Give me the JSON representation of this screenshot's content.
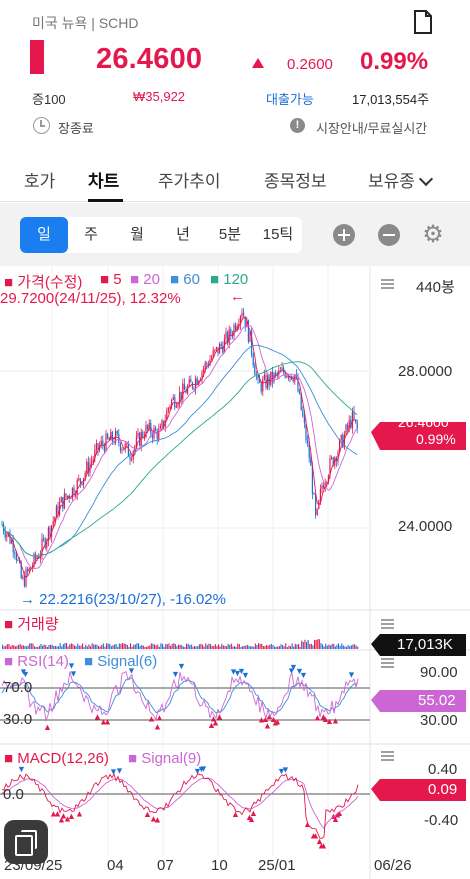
{
  "header": {
    "market_symbol": "미국 뉴욕 | SCHD",
    "price": "26.4600",
    "change": "0.2600",
    "change_pct": "0.99%",
    "margin": "증100",
    "krw_price": "₩35,922",
    "loan": "대출가능",
    "volume": "17,013,554주",
    "status": "장종료",
    "market_info": "시장안내/무료실시간",
    "accent_color": "#e5184e"
  },
  "tabs": [
    {
      "label": "호가",
      "active": false
    },
    {
      "label": "차트",
      "active": true
    },
    {
      "label": "주가추이",
      "active": false
    },
    {
      "label": "종목정보",
      "active": false
    },
    {
      "label": "보유종",
      "active": false
    }
  ],
  "periods": [
    {
      "label": "일",
      "active": true
    },
    {
      "label": "주",
      "active": false
    },
    {
      "label": "월",
      "active": false
    },
    {
      "label": "년",
      "active": false
    },
    {
      "label": "5분",
      "active": false
    },
    {
      "label": "15틱",
      "active": false
    }
  ],
  "chart": {
    "price_legend": "■ 가격(수정)",
    "ma5": "■ 5",
    "ma20": "■ 20",
    "ma60": "■ 60",
    "ma120": "■ 120",
    "candles": "440봉",
    "high_note": "29.7200(24/11/25), 12.32%",
    "low_note": "22.2216(23/10/27), -16.02%",
    "y_28": "28.0000",
    "y_24": "24.0000",
    "current_price": "26.4600",
    "current_pct": "0.99%",
    "volume_title": "■ 거래량",
    "volume_value": "17,013K",
    "rsi_title": "■ RSI(14)",
    "rsi_signal": "■ Signal(6)",
    "rsi_90": "90.00",
    "rsi_30": "30.00",
    "rsi_70": "70.0",
    "rsi_30l": "30.0",
    "rsi_value": "55.02",
    "macd_title": "■ MACD(12,26)",
    "macd_signal": "■ Signal(9)",
    "macd_040": "0.40",
    "macd_0": "0.0",
    "macd_neg040": "-0.40",
    "macd_value": "0.09",
    "x_labels": [
      "23/09/25",
      "04",
      "07",
      "10",
      "25/01",
      "06/26"
    ]
  }
}
